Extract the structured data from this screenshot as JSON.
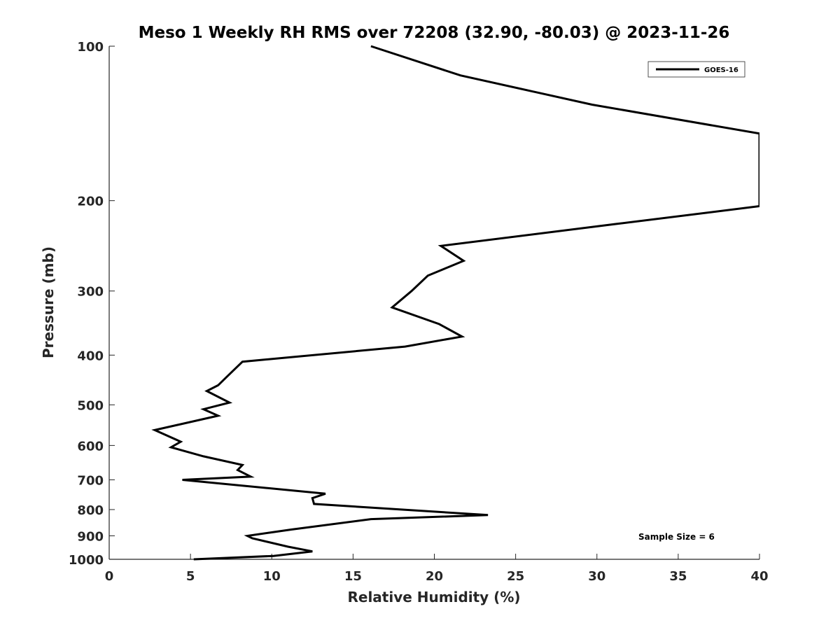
{
  "chart_data": {
    "type": "line",
    "title": "Meso 1 Weekly RH RMS over 72208 (32.90, -80.03) @ 2023-11-26",
    "xlabel": "Relative Humidity (%)",
    "ylabel": "Pressure (mb)",
    "xlim": [
      0,
      40
    ],
    "ylim": [
      1000,
      100
    ],
    "y_scale": "log",
    "y_reversed": true,
    "grid": false,
    "x_ticks": [
      0,
      5,
      10,
      15,
      20,
      25,
      30,
      35,
      40
    ],
    "y_ticks": [
      100,
      200,
      300,
      400,
      500,
      600,
      700,
      800,
      900,
      1000
    ],
    "legend": {
      "placement": "top-right",
      "entries": [
        "GOES-16"
      ]
    },
    "annotations": [
      "Sample Size = 6"
    ],
    "series": [
      {
        "name": "GOES-16",
        "color": "#000000",
        "x": [
          5.2,
          10.1,
          12.5,
          11.0,
          8.8,
          8.5,
          11.2,
          16.1,
          23.3,
          12.6,
          12.5,
          13.3,
          4.5,
          8.7,
          7.9,
          8.2,
          5.8,
          3.8,
          4.4,
          2.8,
          6.7,
          5.8,
          7.4,
          6.0,
          6.7,
          7.2,
          8.2,
          18.2,
          21.7,
          20.3,
          17.4,
          18.6,
          19.6,
          21.8,
          20.4,
          31.2,
          40.0,
          40.0,
          29.7,
          21.6,
          16.1
        ],
        "y": [
          1000,
          985,
          965,
          945,
          910,
          900,
          875,
          835,
          820,
          780,
          760,
          745,
          700,
          690,
          670,
          655,
          630,
          605,
          590,
          560,
          525,
          510,
          495,
          470,
          458,
          442,
          412,
          385,
          368,
          348,
          323,
          300,
          280,
          262,
          245,
          222,
          205,
          148,
          130,
          114,
          100
        ]
      }
    ]
  }
}
